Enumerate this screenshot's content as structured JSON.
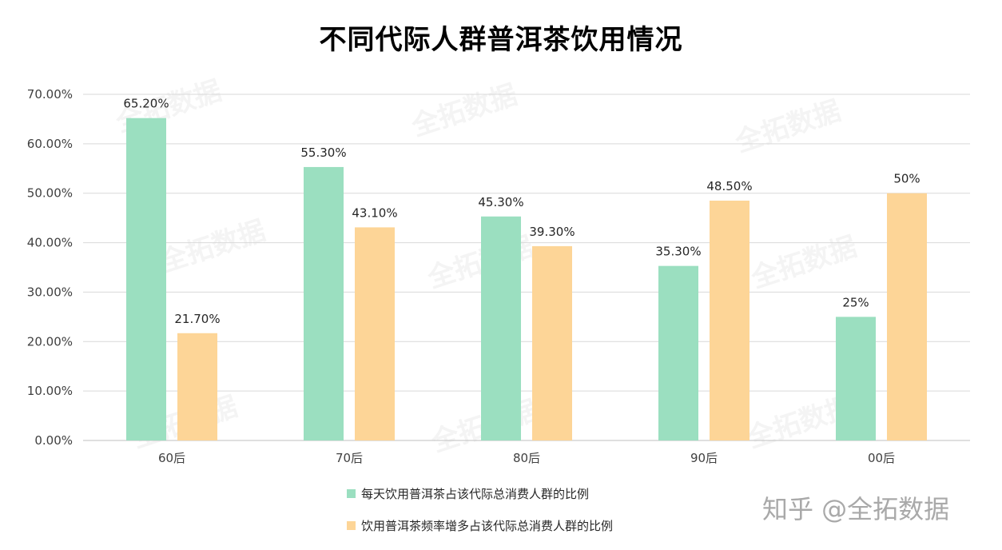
{
  "chart_data": {
    "type": "bar",
    "title": "不同代际人群普洱茶饮用情况",
    "xlabel": "",
    "ylabel": "",
    "categories": [
      "60后",
      "70后",
      "80后",
      "90后",
      "00后"
    ],
    "series": [
      {
        "name": "每天饮用普洱茶占该代际总消费人群的比例",
        "color": "#9bdfc0",
        "values": [
          65.2,
          55.3,
          45.3,
          35.3,
          25
        ],
        "labels": [
          "65.20%",
          "55.30%",
          "45.30%",
          "35.30%",
          "25%"
        ]
      },
      {
        "name": "饮用普洱茶频率增多占该代际总消费人群的比例",
        "color": "#fdd597",
        "values": [
          21.7,
          43.1,
          39.3,
          48.5,
          50
        ],
        "labels": [
          "21.70%",
          "43.10%",
          "39.30%",
          "48.50%",
          "50%"
        ]
      }
    ],
    "ylim": [
      0,
      70
    ],
    "yticks": [
      0,
      10,
      20,
      30,
      40,
      50,
      60,
      70
    ],
    "ytick_labels": [
      "0.00%",
      "10.00%",
      "20.00%",
      "30.00%",
      "40.00%",
      "50.00%",
      "60.00%",
      "70.00%"
    ],
    "grid": true,
    "legend_position": "bottom"
  },
  "watermark": "全拓数据",
  "footer_brand": "知乎 @全拓数据",
  "colors": {
    "gridline": "#d9d9d9",
    "axis": "#bfbfbf"
  }
}
